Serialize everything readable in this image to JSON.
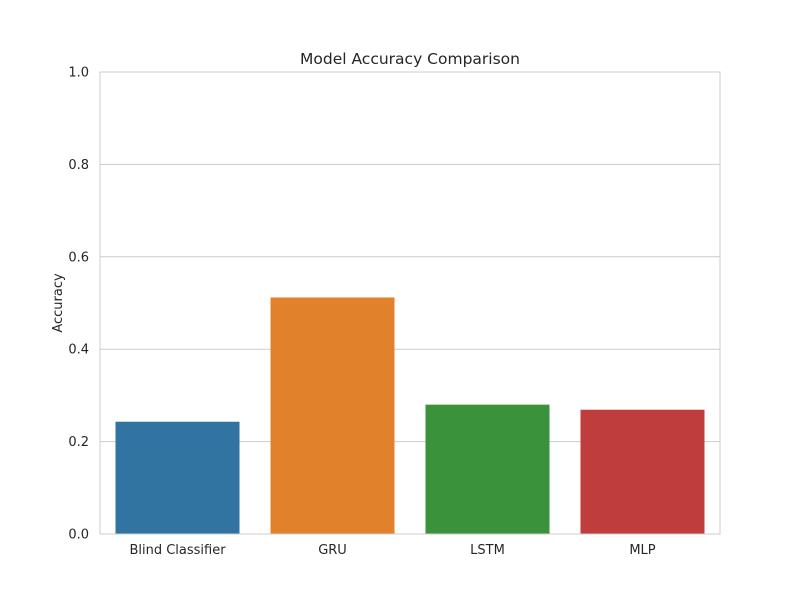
{
  "chart_data": {
    "type": "bar",
    "title": "Model Accuracy Comparison",
    "xlabel": "",
    "ylabel": "Accuracy",
    "categories": [
      "Blind Classifier",
      "GRU",
      "LSTM",
      "MLP"
    ],
    "values": [
      0.243,
      0.512,
      0.28,
      0.269
    ],
    "colors": [
      "#3274a1",
      "#e1812c",
      "#3a923a",
      "#c03d3e"
    ],
    "ylim": [
      0,
      1.0
    ],
    "yticks": [
      "0.0",
      "0.2",
      "0.4",
      "0.6",
      "0.8",
      "1.0"
    ],
    "grid": "horizontal",
    "style": {
      "background": "#ffffff",
      "grid_color": "#cccccc",
      "spine_color": "#cccccc"
    }
  }
}
